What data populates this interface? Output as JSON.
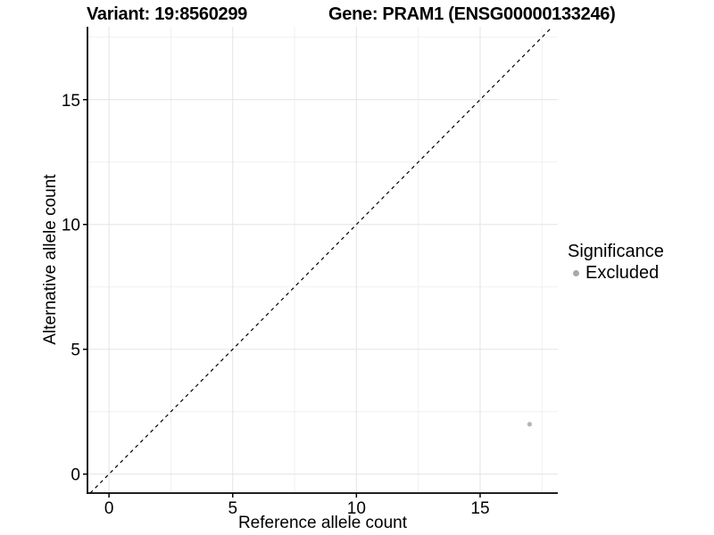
{
  "chart_data": {
    "type": "scatter",
    "title_left": "Variant: 19:8560299",
    "title_right": "Gene: PRAM1 (ENSG00000133246)",
    "xlabel": "Reference allele count",
    "ylabel": "Alternative allele count",
    "xlim": [
      -0.87,
      18.14
    ],
    "ylim": [
      -0.76,
      17.92
    ],
    "xticks": [
      0,
      5,
      10,
      15
    ],
    "yticks": [
      0,
      5,
      10,
      15
    ],
    "minor_xticks": [
      2.5,
      7.5,
      12.5,
      17.5
    ],
    "minor_yticks": [
      2.5,
      7.5,
      12.5,
      17.5
    ],
    "grid": true,
    "legend_position": "right",
    "identity_line": {
      "slope": 1,
      "intercept": 0,
      "style": "dashed",
      "color": "#000000"
    },
    "points": [
      {
        "x": 17,
        "y": 2,
        "significance": "Excluded",
        "color": "#b5b5b5",
        "radius": 2.6
      }
    ],
    "legend": {
      "title": "Significance",
      "items": [
        {
          "label": "Excluded",
          "color": "#a9a9a9"
        }
      ]
    },
    "colors": {
      "axis": "#000000",
      "tick_text": "#000000",
      "grid_major": "#e4e4e4",
      "grid_minor": "#f0f0f0",
      "background": "#ffffff"
    }
  }
}
